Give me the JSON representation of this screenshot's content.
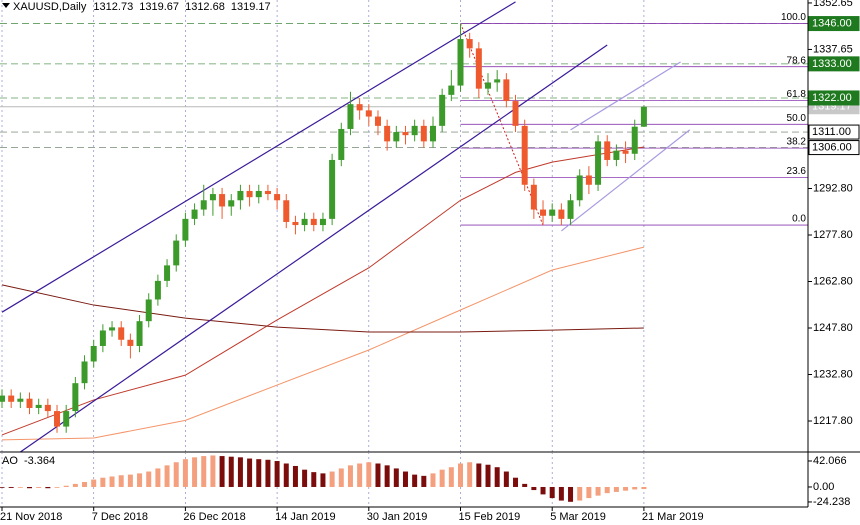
{
  "chart_data": {
    "type": "candlestick",
    "symbol": "XAUUSD,Daily",
    "categories": [
      "21 Nov 2018",
      null,
      null,
      null,
      null,
      null,
      null,
      null,
      null,
      null,
      "7 Dec 2018",
      null,
      null,
      null,
      null,
      null,
      null,
      null,
      null,
      null,
      "26 Dec 2018",
      null,
      null,
      null,
      null,
      null,
      null,
      null,
      null,
      null,
      "14 Jan 2019",
      null,
      null,
      null,
      null,
      null,
      null,
      null,
      null,
      null,
      "30 Jan 2019",
      null,
      null,
      null,
      null,
      null,
      null,
      null,
      null,
      null,
      "15 Feb 2019",
      null,
      null,
      null,
      null,
      null,
      null,
      null,
      null,
      null,
      "5 Mar 2019",
      null,
      null,
      null,
      null,
      null,
      null,
      null,
      null,
      null,
      "21 Mar 2019"
    ],
    "open": [
      1224,
      1226,
      1224,
      1225,
      1222,
      1223,
      1221,
      1216,
      1221,
      1230,
      1237,
      1242,
      1247,
      1248,
      1244,
      1242,
      1250,
      1257,
      1263,
      1268,
      1276,
      1283,
      1286,
      1289,
      1291,
      1287,
      1289,
      1292,
      1290,
      1292,
      1291,
      1289,
      1282,
      1281,
      1283,
      1281,
      1283,
      1302,
      1312,
      1320,
      1318,
      1316,
      1313,
      1308,
      1311,
      1310,
      1313,
      1308,
      1313,
      1323,
      1326,
      1341,
      1338,
      1325,
      1327,
      1328,
      1321,
      1313,
      1294,
      1286,
      1284,
      1286,
      1283,
      1289,
      1297,
      1294,
      1308,
      1302,
      1305,
      1304,
      1312.73
    ],
    "high": [
      1228,
      1228,
      1227,
      1227,
      1225,
      1225,
      1223,
      1223,
      1232,
      1239,
      1244,
      1249,
      1250,
      1250,
      1246,
      1252,
      1259,
      1265,
      1270,
      1278,
      1285,
      1288,
      1294,
      1293,
      1293,
      1291,
      1294,
      1294,
      1294,
      1294,
      1293,
      1291,
      1284,
      1285,
      1285,
      1285,
      1304,
      1314,
      1324,
      1322,
      1320,
      1318,
      1315,
      1313,
      1313,
      1315,
      1315,
      1316,
      1325,
      1331,
      1346,
      1343,
      1340,
      1330,
      1331,
      1330,
      1323,
      1315,
      1296,
      1289,
      1288,
      1288,
      1291,
      1299,
      1300,
      1310,
      1310,
      1307,
      1308,
      1315,
      1319.67
    ],
    "low": [
      1222,
      1222,
      1222,
      1220,
      1220,
      1219,
      1214,
      1214,
      1219,
      1228,
      1235,
      1240,
      1245,
      1242,
      1238,
      1240,
      1248,
      1255,
      1261,
      1266,
      1274,
      1281,
      1284,
      1284,
      1283,
      1284,
      1286,
      1287,
      1288,
      1289,
      1286,
      1280,
      1278,
      1279,
      1279,
      1279,
      1281,
      1300,
      1310,
      1315,
      1313,
      1310,
      1305,
      1306,
      1307,
      1308,
      1306,
      1306,
      1311,
      1321,
      1324,
      1335,
      1322,
      1323,
      1324,
      1319,
      1311,
      1292,
      1283,
      1281,
      1282,
      1281,
      1281,
      1287,
      1291,
      1292,
      1300,
      1300,
      1301,
      1302,
      1312.68
    ],
    "close": [
      1226,
      1224,
      1225,
      1222,
      1223,
      1221,
      1216,
      1221,
      1230,
      1237,
      1242,
      1247,
      1248,
      1244,
      1242,
      1250,
      1257,
      1263,
      1268,
      1276,
      1283,
      1286,
      1289,
      1291,
      1287,
      1289,
      1292,
      1290,
      1292,
      1291,
      1289,
      1282,
      1281,
      1283,
      1281,
      1283,
      1302,
      1312,
      1320,
      1318,
      1316,
      1313,
      1308,
      1311,
      1310,
      1313,
      1308,
      1313,
      1323,
      1326,
      1341,
      1338,
      1325,
      1327,
      1328,
      1321,
      1313,
      1294,
      1286,
      1284,
      1286,
      1283,
      1289,
      1297,
      1294,
      1308,
      1302,
      1305,
      1304,
      1312.73,
      1319.17
    ],
    "up_color": "#3c9a2a",
    "down_color": "#ee5a2e",
    "ylim": [
      1207.8,
      1353.6
    ],
    "yticks": [
      1352.65,
      1337.65,
      1322.65,
      {
        "value": 1292.8,
        "label": "1292.80"
      },
      {
        "value": 1277.8,
        "label": "1277.80"
      },
      {
        "value": 1262.8,
        "label": "1262.80"
      },
      {
        "value": 1247.8,
        "label": "1247.80"
      },
      {
        "value": 1232.8,
        "label": "1232.80"
      },
      {
        "value": 1217.8,
        "label": "1217.80"
      }
    ],
    "xgrid": true,
    "moving_averages": [
      {
        "color": "#c0392b",
        "x": [
          0,
          10,
          20,
          30,
          40,
          50,
          56,
          60,
          70
        ],
        "values": [
          1213.3,
          1224.6,
          1232.6,
          1250.4,
          1267.2,
          1289,
          1298,
          1301.3,
          1306.2
        ]
      },
      {
        "color": "#f4956a",
        "x": [
          0,
          10,
          20,
          30,
          40,
          50,
          60,
          70
        ],
        "values": [
          1211.7,
          1212.3,
          1218,
          1229.4,
          1240.7,
          1253.6,
          1266.5,
          1273.9
        ]
      },
      {
        "color": "#7a1a10",
        "x": [
          0,
          10,
          20,
          30,
          40,
          50,
          60,
          70
        ],
        "values": [
          1261.7,
          1255.2,
          1251,
          1248.1,
          1246.5,
          1246.5,
          1247.1,
          1247.8
        ]
      }
    ],
    "trendlines": [
      {
        "color": "#3a1a9a",
        "x": [
          0,
          56
        ],
        "values": [
          1252.9,
          1353
        ]
      },
      {
        "color": "#3a1a9a",
        "x": [
          2,
          66
        ],
        "values": [
          1207.8,
          1339.1
        ]
      },
      {
        "color": "#a89ae0",
        "x": [
          62,
          74
        ],
        "values": [
          1311.7,
          1333.6
        ]
      },
      {
        "color": "#a89ae0",
        "x": [
          61,
          75
        ],
        "values": [
          1279.1,
          1311.7
        ]
      }
    ],
    "levels": [
      {
        "value": 1346,
        "label": "1346.00",
        "color": "#1f7a1f"
      },
      {
        "value": 1333,
        "label": "1333.00",
        "color": "#1f7a1f"
      },
      {
        "value": 1322,
        "label": "1322.00",
        "color": "#1f7a1f"
      },
      {
        "value": 1311,
        "label": "1311.00",
        "color": "#ffffff"
      },
      {
        "value": 1306,
        "label": "1306.00",
        "color": "#ffffff"
      }
    ],
    "fibo": {
      "x": [
        50,
        59
      ],
      "prices": [
        1346,
        1281
      ],
      "color": "#8a3ab0",
      "levels": [
        {
          "value": 100,
          "label": "100.0"
        },
        {
          "value": 78.6,
          "label": "78.6"
        },
        {
          "value": 61.8,
          "label": "61.8"
        },
        {
          "value": 50,
          "label": "50.0"
        },
        {
          "value": 38.2,
          "label": "38.2"
        },
        {
          "value": 23.6,
          "label": "23.6"
        },
        {
          "value": 0,
          "label": "0.0"
        }
      ]
    },
    "indicator": {
      "type": "bar",
      "name": "AO",
      "values": [
        -1,
        -1.5,
        -1,
        -2,
        -1.5,
        -2,
        -1,
        2,
        5,
        8,
        12,
        15,
        17,
        19,
        20,
        22,
        25,
        30,
        35,
        40,
        45,
        48,
        50,
        51,
        50,
        49,
        48,
        46,
        45,
        44,
        42,
        38,
        34,
        28,
        24,
        22,
        25,
        30,
        35,
        38,
        40,
        38,
        35,
        30,
        25,
        20,
        18,
        22,
        28,
        32,
        38,
        40,
        38,
        36,
        32,
        25,
        15,
        5,
        -5,
        -12,
        -18,
        -22,
        -24,
        -22,
        -18,
        -14,
        -10,
        -8,
        -6,
        -4,
        -3.364
      ],
      "up_color": "#f4a07e",
      "down_color": "#7a0c0c",
      "ylim": [
        -32.4,
        56.6
      ],
      "yticks": [
        42.066,
        {
          "value": 0,
          "label": "0.00"
        },
        -24.238
      ]
    }
  }
}
